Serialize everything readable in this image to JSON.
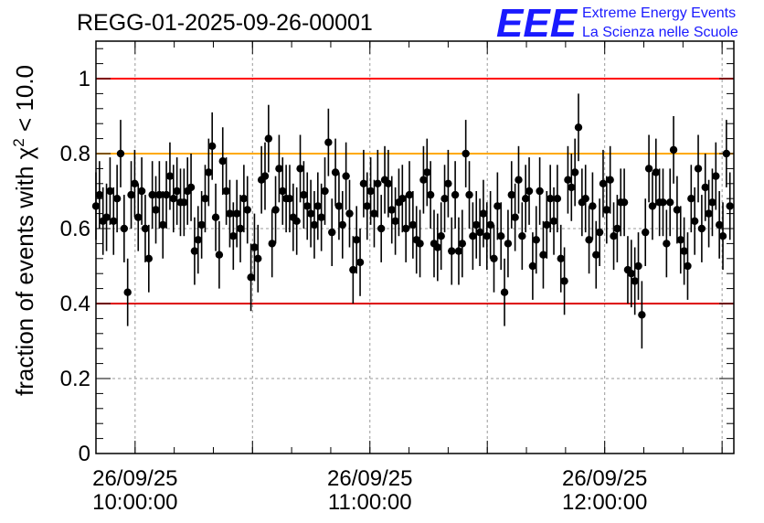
{
  "header": {
    "run_id": "REGG-01-2025-09-26-00001",
    "logo_text": "EEE",
    "logo_line1": "Extreme Energy Events",
    "logo_line2": "La Scienza nelle Scuole"
  },
  "chart_data": {
    "type": "scatter",
    "title": "REGG-01-2025-09-26-00001",
    "ylabel": "fraction of events with χ² < 10.0",
    "ylabel_prefix": "fraction of events with ",
    "ylabel_symbol": "χ",
    "ylabel_sup": "2",
    "ylabel_suffix": " < 10.0",
    "xlabel": "",
    "x_unit": "minutes since 26/09/25 09:50:00",
    "xlim": [
      0,
      163
    ],
    "ylim": [
      0,
      1.1
    ],
    "y_ticks": [
      "0",
      "0.2",
      "0.4",
      "0.6",
      "0.8",
      "1"
    ],
    "y_tick_values": [
      0,
      0.2,
      0.4,
      0.6,
      0.8,
      1
    ],
    "x_ticks": [
      {
        "x": 10,
        "date": "26/09/25",
        "time": "10:00:00"
      },
      {
        "x": 70,
        "date": "26/09/25",
        "time": "11:00:00"
      },
      {
        "x": 130,
        "date": "26/09/25",
        "time": "12:00:00"
      }
    ],
    "grid": true,
    "reference_lines": [
      {
        "y": 1.0,
        "color": "#ff0000"
      },
      {
        "y": 0.8,
        "color": "#ffaa00"
      },
      {
        "y": 0.4,
        "color": "#dd0000"
      }
    ],
    "marker_color": "#000000",
    "series": [
      {
        "name": "fraction",
        "error": 0.09,
        "points": [
          [
            0,
            0.66
          ],
          [
            0.9,
            0.69
          ],
          [
            1.8,
            0.62
          ],
          [
            2.7,
            0.63
          ],
          [
            3.6,
            0.7
          ],
          [
            4.5,
            0.62
          ],
          [
            5.4,
            0.68
          ],
          [
            6.3,
            0.8
          ],
          [
            7.2,
            0.6
          ],
          [
            8.1,
            0.43
          ],
          [
            9,
            0.69
          ],
          [
            9.9,
            0.72
          ],
          [
            10.8,
            0.63
          ],
          [
            11.7,
            0.7
          ],
          [
            12.6,
            0.6
          ],
          [
            13.5,
            0.52
          ],
          [
            14.4,
            0.69
          ],
          [
            15.3,
            0.65
          ],
          [
            16.2,
            0.69
          ],
          [
            17.1,
            0.61
          ],
          [
            18,
            0.69
          ],
          [
            18.9,
            0.74
          ],
          [
            19.8,
            0.68
          ],
          [
            20.7,
            0.7
          ],
          [
            21.6,
            0.67
          ],
          [
            22.5,
            0.67
          ],
          [
            23.4,
            0.7
          ],
          [
            24.3,
            0.71
          ],
          [
            25.2,
            0.54
          ],
          [
            26.1,
            0.57
          ],
          [
            27,
            0.61
          ],
          [
            27.9,
            0.68
          ],
          [
            28.8,
            0.75
          ],
          [
            29.7,
            0.82
          ],
          [
            30.6,
            0.63
          ],
          [
            31.5,
            0.53
          ],
          [
            32.4,
            0.78
          ],
          [
            33.3,
            0.7
          ],
          [
            34.2,
            0.64
          ],
          [
            35.1,
            0.58
          ],
          [
            36,
            0.64
          ],
          [
            36.9,
            0.6
          ],
          [
            37.8,
            0.68
          ],
          [
            38.7,
            0.65
          ],
          [
            39.6,
            0.47
          ],
          [
            40.5,
            0.55
          ],
          [
            41.4,
            0.52
          ],
          [
            42.3,
            0.73
          ],
          [
            43.2,
            0.74
          ],
          [
            44.1,
            0.84
          ],
          [
            45,
            0.56
          ],
          [
            45.9,
            0.65
          ],
          [
            46.8,
            0.76
          ],
          [
            47.7,
            0.7
          ],
          [
            48.6,
            0.68
          ],
          [
            49.5,
            0.68
          ],
          [
            50.4,
            0.63
          ],
          [
            51.3,
            0.62
          ],
          [
            52.2,
            0.76
          ],
          [
            53.1,
            0.69
          ],
          [
            54,
            0.66
          ],
          [
            54.9,
            0.64
          ],
          [
            55.8,
            0.61
          ],
          [
            56.7,
            0.66
          ],
          [
            57.6,
            0.63
          ],
          [
            58.5,
            0.7
          ],
          [
            59.4,
            0.83
          ],
          [
            60.3,
            0.59
          ],
          [
            61.2,
            0.75
          ],
          [
            62.1,
            0.66
          ],
          [
            63,
            0.61
          ],
          [
            63.9,
            0.74
          ],
          [
            64.8,
            0.64
          ],
          [
            65.7,
            0.49
          ],
          [
            66.6,
            0.57
          ],
          [
            67.5,
            0.51
          ],
          [
            68.4,
            0.72
          ],
          [
            69.3,
            0.66
          ],
          [
            70.2,
            0.7
          ],
          [
            71.1,
            0.64
          ],
          [
            72,
            0.72
          ],
          [
            72.9,
            0.6
          ],
          [
            73.8,
            0.73
          ],
          [
            74.7,
            0.72
          ],
          [
            75.6,
            0.65
          ],
          [
            76.5,
            0.62
          ],
          [
            77.4,
            0.67
          ],
          [
            78.3,
            0.68
          ],
          [
            79.2,
            0.6
          ],
          [
            80.1,
            0.69
          ],
          [
            81,
            0.61
          ],
          [
            81.9,
            0.57
          ],
          [
            82.8,
            0.56
          ],
          [
            83.7,
            0.73
          ],
          [
            84.6,
            0.75
          ],
          [
            85.5,
            0.69
          ],
          [
            86.4,
            0.56
          ],
          [
            87.3,
            0.55
          ],
          [
            88.2,
            0.58
          ],
          [
            89.1,
            0.68
          ],
          [
            90,
            0.72
          ],
          [
            90.9,
            0.54
          ],
          [
            91.8,
            0.69
          ],
          [
            92.7,
            0.54
          ],
          [
            93.6,
            0.56
          ],
          [
            94.5,
            0.8
          ],
          [
            95.4,
            0.69
          ],
          [
            96.3,
            0.58
          ],
          [
            97.2,
            0.61
          ],
          [
            98.1,
            0.59
          ],
          [
            99,
            0.64
          ],
          [
            99.9,
            0.58
          ],
          [
            100.8,
            0.61
          ],
          [
            101.7,
            0.52
          ],
          [
            102.6,
            0.66
          ],
          [
            103.5,
            0.58
          ],
          [
            104.4,
            0.43
          ],
          [
            105.3,
            0.56
          ],
          [
            106.2,
            0.69
          ],
          [
            107.1,
            0.63
          ],
          [
            108,
            0.73
          ],
          [
            108.9,
            0.58
          ],
          [
            109.8,
            0.68
          ],
          [
            110.7,
            0.7
          ],
          [
            111.6,
            0.5
          ],
          [
            112.5,
            0.57
          ],
          [
            113.4,
            0.7
          ],
          [
            114.3,
            0.53
          ],
          [
            115.2,
            0.61
          ],
          [
            116.1,
            0.68
          ],
          [
            117,
            0.62
          ],
          [
            117.9,
            0.68
          ],
          [
            118.8,
            0.52
          ],
          [
            119.7,
            0.46
          ],
          [
            120.6,
            0.73
          ],
          [
            121.5,
            0.71
          ],
          [
            122.4,
            0.75
          ],
          [
            123.3,
            0.87
          ],
          [
            124.2,
            0.67
          ],
          [
            125.1,
            0.68
          ],
          [
            126,
            0.57
          ],
          [
            126.9,
            0.66
          ],
          [
            127.8,
            0.53
          ],
          [
            128.7,
            0.59
          ],
          [
            129.6,
            0.72
          ],
          [
            130.5,
            0.65
          ],
          [
            131.4,
            0.73
          ],
          [
            132.3,
            0.58
          ],
          [
            133.2,
            0.6
          ],
          [
            134.1,
            0.67
          ],
          [
            135,
            0.67
          ],
          [
            135.9,
            0.49
          ],
          [
            136.8,
            0.48
          ],
          [
            137.7,
            0.46
          ],
          [
            138.6,
            0.5
          ],
          [
            139.5,
            0.37
          ],
          [
            140.4,
            0.59
          ],
          [
            141.3,
            0.76
          ],
          [
            142.2,
            0.66
          ],
          [
            143.1,
            0.75
          ],
          [
            144,
            0.67
          ],
          [
            144.9,
            0.67
          ],
          [
            145.8,
            0.56
          ],
          [
            146.7,
            0.67
          ],
          [
            147.6,
            0.81
          ],
          [
            148.5,
            0.65
          ],
          [
            149.4,
            0.57
          ],
          [
            150.3,
            0.54
          ],
          [
            151.2,
            0.5
          ],
          [
            152.1,
            0.68
          ],
          [
            153,
            0.62
          ],
          [
            153.9,
            0.76
          ],
          [
            154.8,
            0.6
          ],
          [
            155.7,
            0.71
          ],
          [
            156.6,
            0.64
          ],
          [
            157.5,
            0.67
          ],
          [
            158.4,
            0.74
          ],
          [
            159.3,
            0.61
          ],
          [
            160.2,
            0.58
          ],
          [
            161.1,
            0.8
          ],
          [
            162,
            0.66
          ]
        ]
      }
    ]
  }
}
